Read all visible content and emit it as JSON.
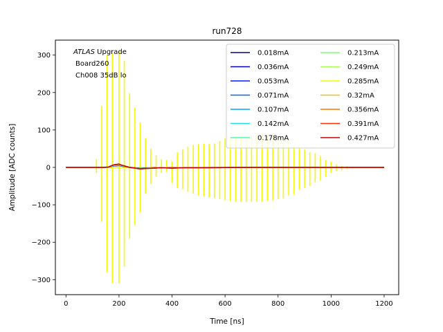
{
  "chart_data": {
    "type": "line",
    "title": "run728",
    "xlabel": "Time [ns]",
    "ylabel": "Amplitude [ADC counts]",
    "xlim": [
      -40,
      1255
    ],
    "ylim": [
      -340,
      340
    ],
    "xticks": [
      0,
      200,
      400,
      600,
      800,
      1000,
      1200
    ],
    "yticks": [
      -300,
      -200,
      -100,
      0,
      100,
      200,
      300
    ],
    "grid": false,
    "legend_placement": "top-right",
    "legend_columns": 2,
    "annotation": {
      "italic": "ATLAS",
      "line1_rest": " Upgrade",
      "line2": "Board260",
      "line3": "Ch008 35dB lo"
    },
    "series": [
      {
        "name": "0.018mA",
        "color": "#00007f"
      },
      {
        "name": "0.036mA",
        "color": "#0000c8"
      },
      {
        "name": "0.053mA",
        "color": "#0017ff"
      },
      {
        "name": "0.071mA",
        "color": "#0063ff"
      },
      {
        "name": "0.107mA",
        "color": "#00a4ff"
      },
      {
        "name": "0.142mA",
        "color": "#1ce1dc"
      },
      {
        "name": "0.178mA",
        "color": "#4cffaa"
      },
      {
        "name": "0.213mA",
        "color": "#7dff7a"
      },
      {
        "name": "0.249mA",
        "color": "#aaff4d"
      },
      {
        "name": "0.285mA",
        "color": "#f4f802"
      },
      {
        "name": "0.32mA",
        "color": "#ffb900"
      },
      {
        "name": "0.356mA",
        "color": "#ff7300"
      },
      {
        "name": "0.391mA",
        "color": "#ff3000"
      },
      {
        "name": "0.427mA",
        "color": "#c80000"
      }
    ],
    "spikes": {
      "series": "0.285mA",
      "time": [
        115,
        135,
        155,
        175,
        200,
        220,
        240,
        260,
        280,
        300,
        320,
        340,
        360,
        380,
        400,
        420,
        440,
        460,
        480,
        500,
        520,
        540,
        560,
        580,
        600,
        620,
        640,
        660,
        680,
        700,
        720,
        740,
        760,
        780,
        800,
        820,
        840,
        860,
        880,
        900,
        920,
        940,
        960,
        980,
        1000,
        1020,
        1040,
        1060,
        1080
      ],
      "high": [
        22,
        165,
        300,
        305,
        310,
        285,
        198,
        160,
        120,
        78,
        50,
        32,
        22,
        20,
        16,
        40,
        48,
        55,
        60,
        62,
        63,
        62,
        64,
        70,
        78,
        80,
        82,
        83,
        84,
        85,
        86,
        85,
        84,
        83,
        82,
        75,
        72,
        55,
        52,
        48,
        40,
        38,
        30,
        20,
        15,
        8,
        5,
        3,
        2
      ],
      "low": [
        -15,
        -145,
        -280,
        -310,
        -310,
        -265,
        -190,
        -155,
        -120,
        -70,
        -45,
        -25,
        -15,
        -12,
        -42,
        -55,
        -58,
        -65,
        -70,
        -75,
        -78,
        -80,
        -82,
        -85,
        -88,
        -90,
        -92,
        -92,
        -92,
        -92,
        -92,
        -92,
        -90,
        -88,
        -85,
        -82,
        -75,
        -72,
        -60,
        -55,
        -50,
        -40,
        -35,
        -25,
        -15,
        -10,
        -8,
        -5,
        -3
      ]
    },
    "pulse": {
      "time": [
        0,
        100,
        140,
        160,
        170,
        180,
        190,
        200,
        210,
        220,
        230,
        240,
        260,
        280,
        300,
        330,
        360,
        400,
        450,
        500,
        600,
        700,
        800,
        1000,
        1200
      ],
      "amplitude": [
        0,
        0,
        0,
        1,
        4,
        7,
        8,
        9,
        6,
        4,
        2,
        0,
        -2,
        -4,
        -3,
        -2,
        -1,
        -2,
        -1,
        -1,
        -0.5,
        0,
        0,
        0,
        0
      ]
    }
  }
}
